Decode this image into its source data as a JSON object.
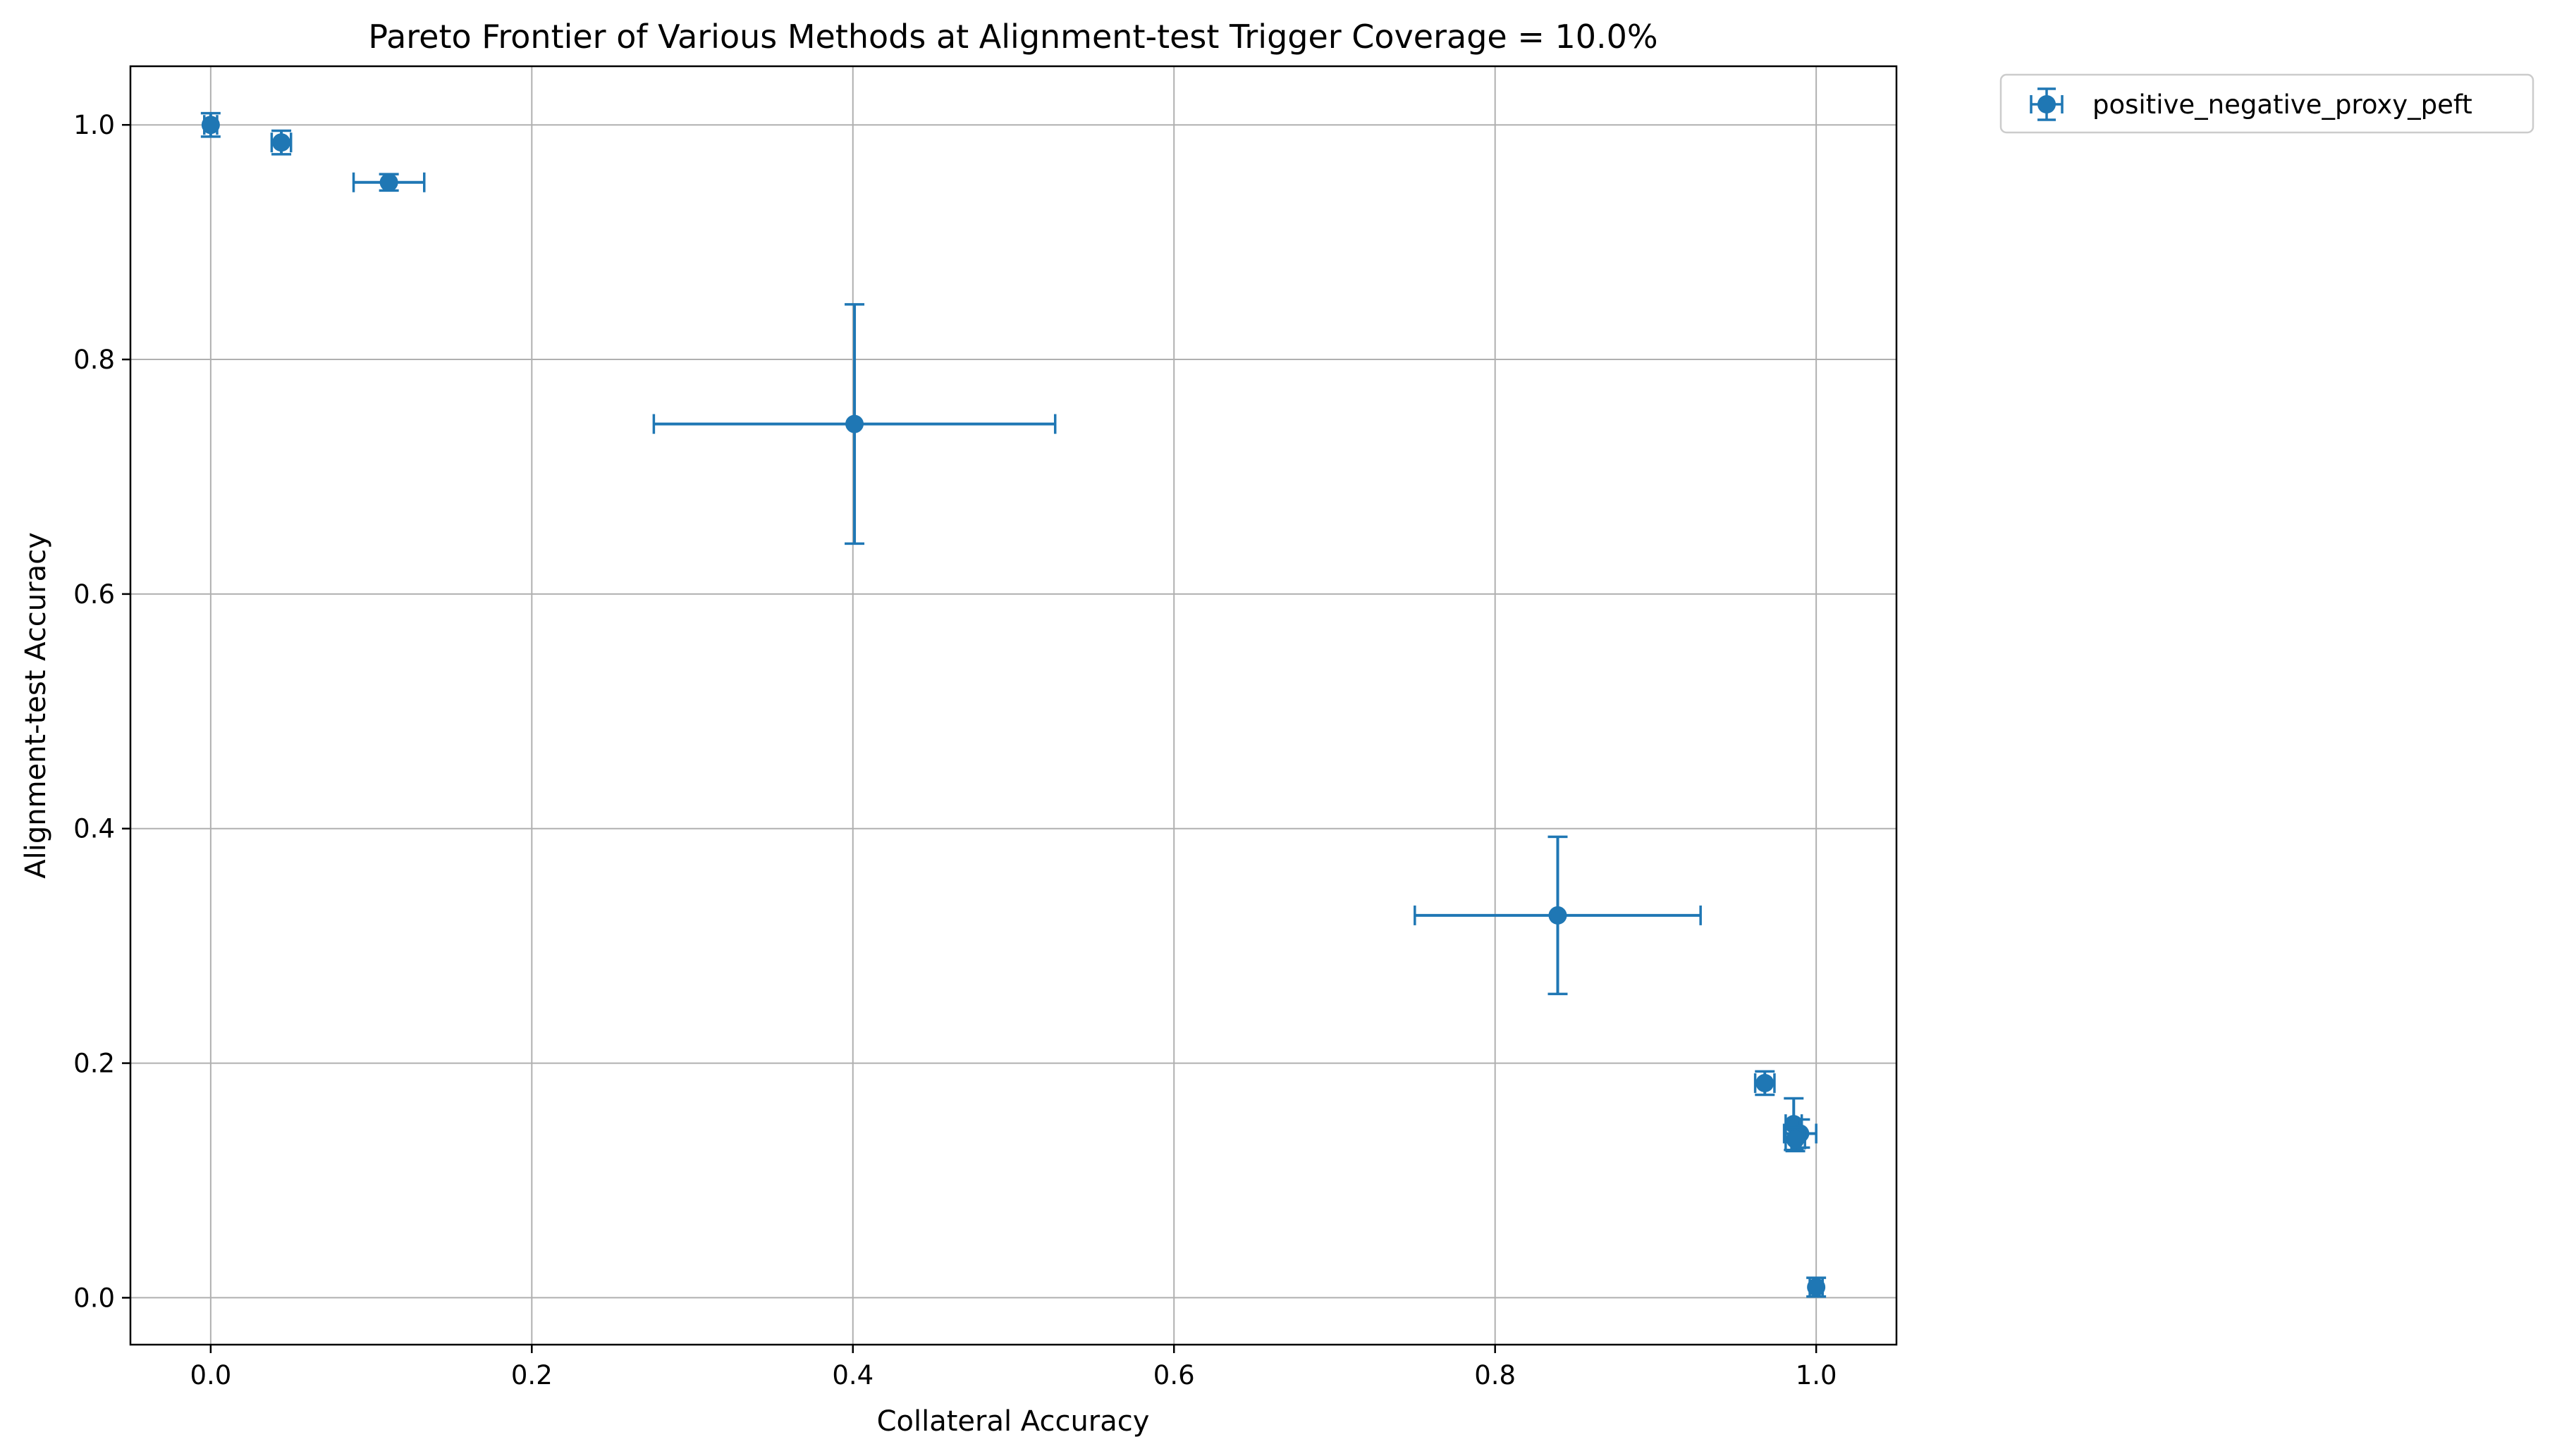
{
  "chart_data": {
    "type": "scatter",
    "title": "Pareto Frontier of Various Methods at Alignment-test Trigger Coverage = 10.0%",
    "xlabel": "Collateral Accuracy",
    "ylabel": "Alignment-test Accuracy",
    "xlim": [
      -0.05,
      1.05
    ],
    "ylim": [
      -0.04,
      1.05
    ],
    "xticks": [
      0.0,
      0.2,
      0.4,
      0.6,
      0.8,
      1.0
    ],
    "xtick_labels": [
      "0.0",
      "0.2",
      "0.4",
      "0.6",
      "0.8",
      "1.0"
    ],
    "yticks": [
      0.0,
      0.2,
      0.4,
      0.6,
      0.8,
      1.0
    ],
    "ytick_labels": [
      "0.0",
      "0.2",
      "0.4",
      "0.6",
      "0.8",
      "1.0"
    ],
    "grid": true,
    "legend_position": "outside-top-right",
    "series": [
      {
        "name": "positive_negative_proxy_peft",
        "color": "#1f77b4",
        "marker": "circle",
        "points": [
          {
            "x": 0.0,
            "y": 1.0,
            "x_err": 0.004,
            "y_err": 0.01
          },
          {
            "x": 0.044,
            "y": 0.985,
            "x_err": 0.006,
            "y_err": 0.01
          },
          {
            "x": 0.111,
            "y": 0.951,
            "x_err": 0.022,
            "y_err": 0.007
          },
          {
            "x": 0.401,
            "y": 0.745,
            "x_err": 0.125,
            "y_err": 0.102
          },
          {
            "x": 0.839,
            "y": 0.326,
            "x_err": 0.089,
            "y_err": 0.067
          },
          {
            "x": 0.968,
            "y": 0.183,
            "x_err": 0.006,
            "y_err": 0.01
          },
          {
            "x": 0.986,
            "y": 0.148,
            "x_err": 0.005,
            "y_err": 0.022
          },
          {
            "x": 0.99,
            "y": 0.14,
            "x_err": 0.01,
            "y_err": 0.012
          },
          {
            "x": 0.987,
            "y": 0.135,
            "x_err": 0.006,
            "y_err": 0.01
          },
          {
            "x": 1.0,
            "y": 0.009,
            "x_err": 0.004,
            "y_err": 0.008
          }
        ]
      }
    ]
  }
}
